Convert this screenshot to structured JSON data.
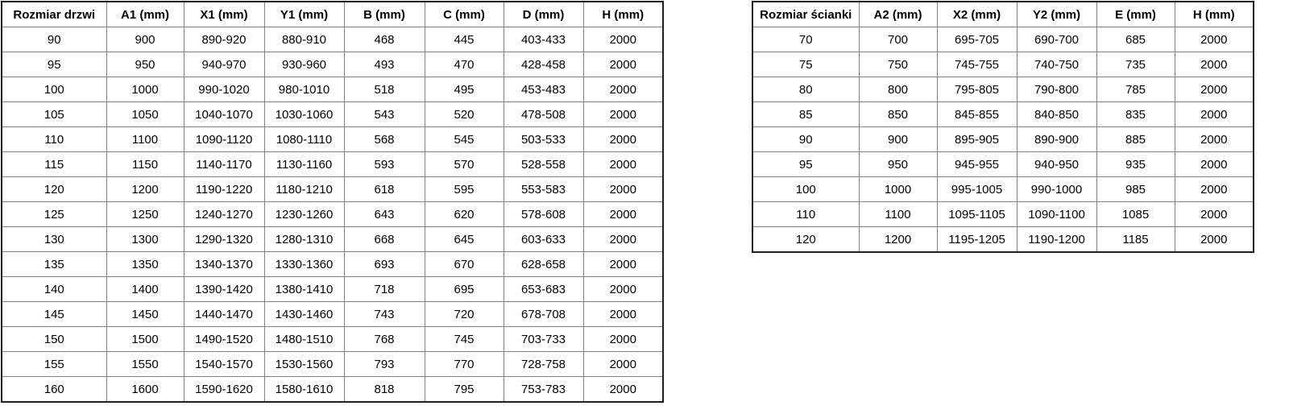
{
  "colors": {
    "background": "#ffffff",
    "text": "#000000",
    "border_inner": "#808080",
    "border_outer": "#1f1f1f"
  },
  "tables": [
    {
      "name": "door-size-table",
      "headers": [
        "Rozmiar drzwi",
        "A1 (mm)",
        "X1 (mm)",
        "Y1 (mm)",
        "B (mm)",
        "C (mm)",
        "D (mm)",
        "H (mm)"
      ],
      "rows": [
        [
          "90",
          "900",
          "890-920",
          "880-910",
          "468",
          "445",
          "403-433",
          "2000"
        ],
        [
          "95",
          "950",
          "940-970",
          "930-960",
          "493",
          "470",
          "428-458",
          "2000"
        ],
        [
          "100",
          "1000",
          "990-1020",
          "980-1010",
          "518",
          "495",
          "453-483",
          "2000"
        ],
        [
          "105",
          "1050",
          "1040-1070",
          "1030-1060",
          "543",
          "520",
          "478-508",
          "2000"
        ],
        [
          "110",
          "1100",
          "1090-1120",
          "1080-1110",
          "568",
          "545",
          "503-533",
          "2000"
        ],
        [
          "115",
          "1150",
          "1140-1170",
          "1130-1160",
          "593",
          "570",
          "528-558",
          "2000"
        ],
        [
          "120",
          "1200",
          "1190-1220",
          "1180-1210",
          "618",
          "595",
          "553-583",
          "2000"
        ],
        [
          "125",
          "1250",
          "1240-1270",
          "1230-1260",
          "643",
          "620",
          "578-608",
          "2000"
        ],
        [
          "130",
          "1300",
          "1290-1320",
          "1280-1310",
          "668",
          "645",
          "603-633",
          "2000"
        ],
        [
          "135",
          "1350",
          "1340-1370",
          "1330-1360",
          "693",
          "670",
          "628-658",
          "2000"
        ],
        [
          "140",
          "1400",
          "1390-1420",
          "1380-1410",
          "718",
          "695",
          "653-683",
          "2000"
        ],
        [
          "145",
          "1450",
          "1440-1470",
          "1430-1460",
          "743",
          "720",
          "678-708",
          "2000"
        ],
        [
          "150",
          "1500",
          "1490-1520",
          "1480-1510",
          "768",
          "745",
          "703-733",
          "2000"
        ],
        [
          "155",
          "1550",
          "1540-1570",
          "1530-1560",
          "793",
          "770",
          "728-758",
          "2000"
        ],
        [
          "160",
          "1600",
          "1590-1620",
          "1580-1610",
          "818",
          "795",
          "753-783",
          "2000"
        ]
      ]
    },
    {
      "name": "wall-size-table",
      "headers": [
        "Rozmiar ścianki",
        "A2 (mm)",
        "X2 (mm)",
        "Y2 (mm)",
        "E (mm)",
        "H (mm)"
      ],
      "rows": [
        [
          "70",
          "700",
          "695-705",
          "690-700",
          "685",
          "2000"
        ],
        [
          "75",
          "750",
          "745-755",
          "740-750",
          "735",
          "2000"
        ],
        [
          "80",
          "800",
          "795-805",
          "790-800",
          "785",
          "2000"
        ],
        [
          "85",
          "850",
          "845-855",
          "840-850",
          "835",
          "2000"
        ],
        [
          "90",
          "900",
          "895-905",
          "890-900",
          "885",
          "2000"
        ],
        [
          "95",
          "950",
          "945-955",
          "940-950",
          "935",
          "2000"
        ],
        [
          "100",
          "1000",
          "995-1005",
          "990-1000",
          "985",
          "2000"
        ],
        [
          "110",
          "1100",
          "1095-1105",
          "1090-1100",
          "1085",
          "2000"
        ],
        [
          "120",
          "1200",
          "1195-1205",
          "1190-1200",
          "1185",
          "2000"
        ]
      ]
    }
  ]
}
